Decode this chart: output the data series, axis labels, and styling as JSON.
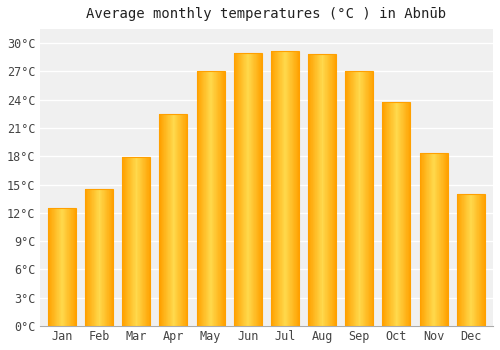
{
  "months": [
    "Jan",
    "Feb",
    "Mar",
    "Apr",
    "May",
    "Jun",
    "Jul",
    "Aug",
    "Sep",
    "Oct",
    "Nov",
    "Dec"
  ],
  "values": [
    12.5,
    14.5,
    17.9,
    22.5,
    27.0,
    29.0,
    29.2,
    28.8,
    27.0,
    23.8,
    18.3,
    14.0
  ],
  "bar_color_main": "#FFBE00",
  "bar_color_light": "#FFD966",
  "bar_color_edge": "#FFA000",
  "title": "Average monthly temperatures (°C ) in Abnūb",
  "title_fontsize": 10,
  "ylabel_ticks": [
    "0°C",
    "3°C",
    "6°C",
    "9°C",
    "12°C",
    "15°C",
    "18°C",
    "21°C",
    "24°C",
    "27°C",
    "30°C"
  ],
  "ytick_values": [
    0,
    3,
    6,
    9,
    12,
    15,
    18,
    21,
    24,
    27,
    30
  ],
  "ylim": [
    0,
    31.5
  ],
  "background_color": "#ffffff",
  "plot_bg_color": "#f0f0f0",
  "grid_color": "#ffffff",
  "tick_fontsize": 8.5,
  "bar_width": 0.75
}
